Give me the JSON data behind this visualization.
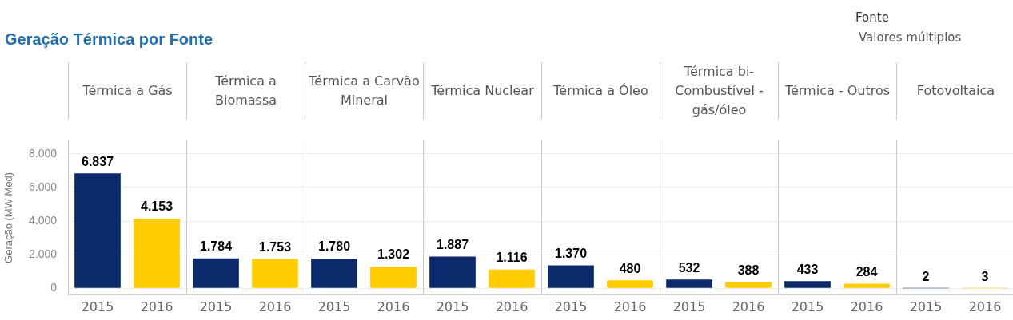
{
  "chart_data": [
    {
      "type": "bar",
      "title": "Geração Térmica por Fonte",
      "subtitle": "Térmica a Gás",
      "ylabel": "Geração (MW Med)",
      "annotations": [
        "Fonte",
        "Valores múltiplos"
      ],
      "categories": [
        "2015",
        "2016"
      ],
      "values": [
        6837,
        4153
      ],
      "value_labels": [
        "6.837",
        "4.153"
      ],
      "colors": [
        "#0c2a6b",
        "#ffcc00"
      ],
      "ylim": [
        -400,
        8800
      ],
      "yticks": [
        {
          "value": 0,
          "label": "0"
        },
        {
          "value": 2000,
          "label": "2.000"
        },
        {
          "value": 4000,
          "label": "4.000"
        },
        {
          "value": 6000,
          "label": "6.000"
        },
        {
          "value": 8000,
          "label": "8.000"
        }
      ],
      "grid": "y"
    },
    {
      "type": "bar",
      "subtitle": "Térmica a Biomassa",
      "categories": [
        "2015",
        "2016"
      ],
      "values": [
        1784,
        1753
      ],
      "value_labels": [
        "1.784",
        "1.753"
      ],
      "colors": [
        "#0c2a6b",
        "#ffcc00"
      ],
      "ylim": [
        -400,
        8800
      ],
      "yticks": [
        0,
        2000,
        4000,
        6000,
        8000
      ],
      "grid": "y",
      "tick_labels": "x"
    },
    {
      "type": "bar",
      "subtitle": "Térmica a Carvão Mineral",
      "categories": [
        "2015",
        "2016"
      ],
      "values": [
        1780,
        1302
      ],
      "value_labels": [
        "1.780",
        "1.302"
      ],
      "colors": [
        "#0c2a6b",
        "#ffcc00"
      ],
      "ylim": [
        -400,
        8800
      ],
      "yticks": [
        0,
        2000,
        4000,
        6000,
        8000
      ],
      "grid": "y",
      "tick_labels": "x"
    },
    {
      "type": "bar",
      "subtitle": "Térmica Nuclear",
      "categories": [
        "2015",
        "2016"
      ],
      "values": [
        1887,
        1116
      ],
      "value_labels": [
        "1.887",
        "1.116"
      ],
      "colors": [
        "#0c2a6b",
        "#ffcc00"
      ],
      "ylim": [
        -400,
        8800
      ],
      "yticks": [
        0,
        2000,
        4000,
        6000,
        8000
      ],
      "grid": "y",
      "tick_labels": "x"
    },
    {
      "type": "bar",
      "subtitle": "Térmica a Óleo",
      "categories": [
        "2015",
        "2016"
      ],
      "values": [
        1370,
        480
      ],
      "value_labels": [
        "1.370",
        "480"
      ],
      "colors": [
        "#0c2a6b",
        "#ffcc00"
      ],
      "ylim": [
        -400,
        8800
      ],
      "yticks": [
        0,
        2000,
        4000,
        6000,
        8000
      ],
      "grid": "y",
      "tick_labels": "x"
    },
    {
      "type": "bar",
      "subtitle": "Térmica bi-Combustível - gás/óleo",
      "categories": [
        "2015",
        "2016"
      ],
      "values": [
        532,
        388
      ],
      "value_labels": [
        "532",
        "388"
      ],
      "colors": [
        "#0c2a6b",
        "#ffcc00"
      ],
      "ylim": [
        -400,
        8800
      ],
      "yticks": [
        0,
        2000,
        4000,
        6000,
        8000
      ],
      "grid": "y",
      "tick_labels": "x"
    },
    {
      "type": "bar",
      "subtitle": "Térmica - Outros",
      "categories": [
        "2015",
        "2016"
      ],
      "values": [
        433,
        284
      ],
      "value_labels": [
        "433",
        "284"
      ],
      "colors": [
        "#0c2a6b",
        "#ffcc00"
      ],
      "ylim": [
        -400,
        8800
      ],
      "yticks": [
        0,
        2000,
        4000,
        6000,
        8000
      ],
      "grid": "y",
      "tick_labels": "x"
    },
    {
      "type": "bar",
      "subtitle": "Fotovoltaica",
      "categories": [
        "2015",
        "2016"
      ],
      "values": [
        2,
        3
      ],
      "value_labels": [
        "2",
        "3"
      ],
      "colors": [
        "#0c2a6b",
        "#ffcc00"
      ],
      "ylim": [
        -400,
        8800
      ],
      "yticks": [
        0,
        2000,
        4000,
        6000,
        8000
      ],
      "grid": "y",
      "tick_labels": "x"
    }
  ]
}
